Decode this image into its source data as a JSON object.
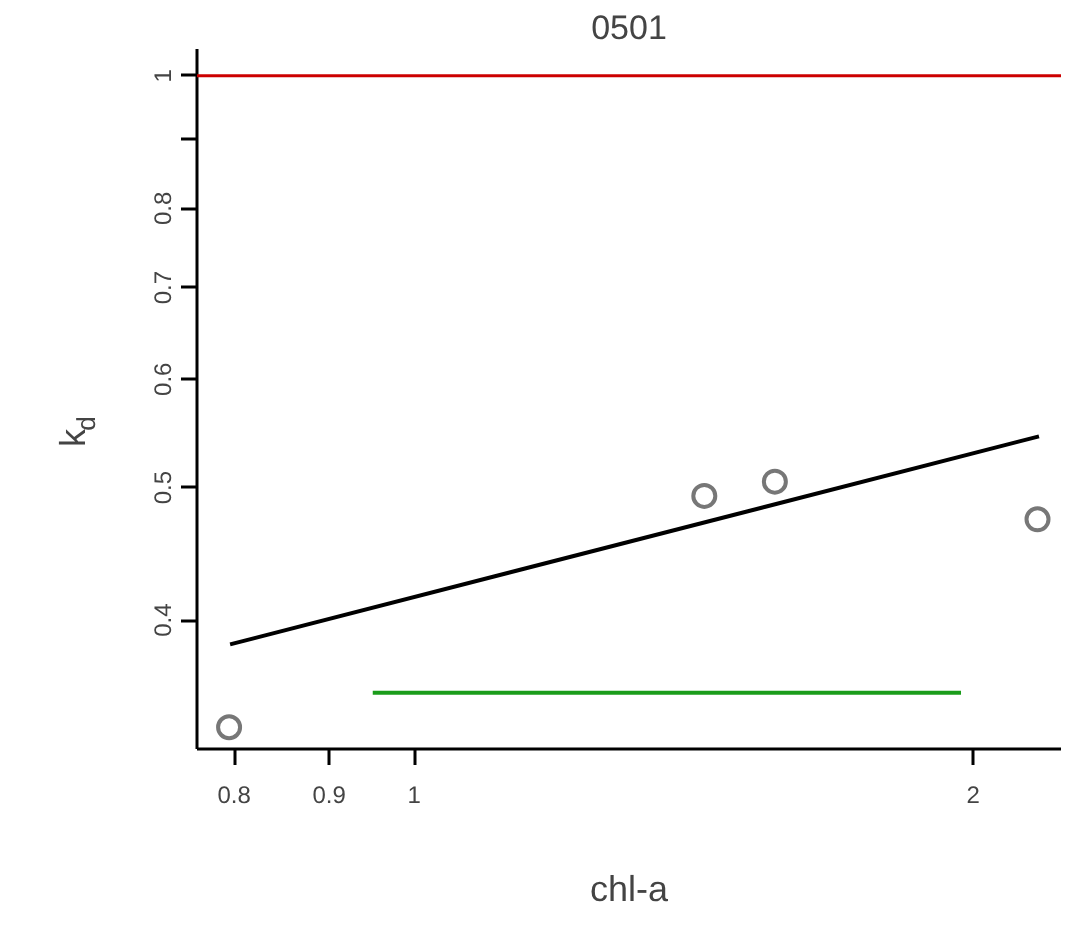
{
  "chart_data": {
    "type": "scatter",
    "title": "0501",
    "xlabel": "chl-a",
    "ylabel": "k$_{d}$",
    "log": "xy",
    "grid": false,
    "xlim": [
      0.764,
      2.23
    ],
    "ylim": [
      0.322,
      1.046
    ],
    "xticks": [
      0.8,
      0.9,
      1,
      2
    ],
    "yticks": [
      0.4,
      0.5,
      0.6,
      0.7,
      0.8,
      {
        "value": 0.9,
        "label": null
      },
      1
    ],
    "series": [
      {
        "marker": "circle",
        "color": "#777777",
        "x": [
          0.795,
          1.433,
          1.564,
          2.166
        ],
        "values": [
          0.334,
          0.493,
          0.505,
          0.474
        ]
      },
      {
        "type": "line",
        "marker": "none",
        "color": "#000000",
        "x": [
          0.796,
          2.17
        ],
        "values": [
          0.384,
          0.545
        ]
      },
      {
        "type": "line",
        "marker": "none",
        "color": "#1a9c1a",
        "x": [
          0.95,
          1.97
        ],
        "values": [
          0.354,
          0.354
        ]
      }
    ],
    "ref_lines": [
      {
        "axis": "y",
        "value": 1,
        "color": "#cc0000"
      }
    ]
  }
}
